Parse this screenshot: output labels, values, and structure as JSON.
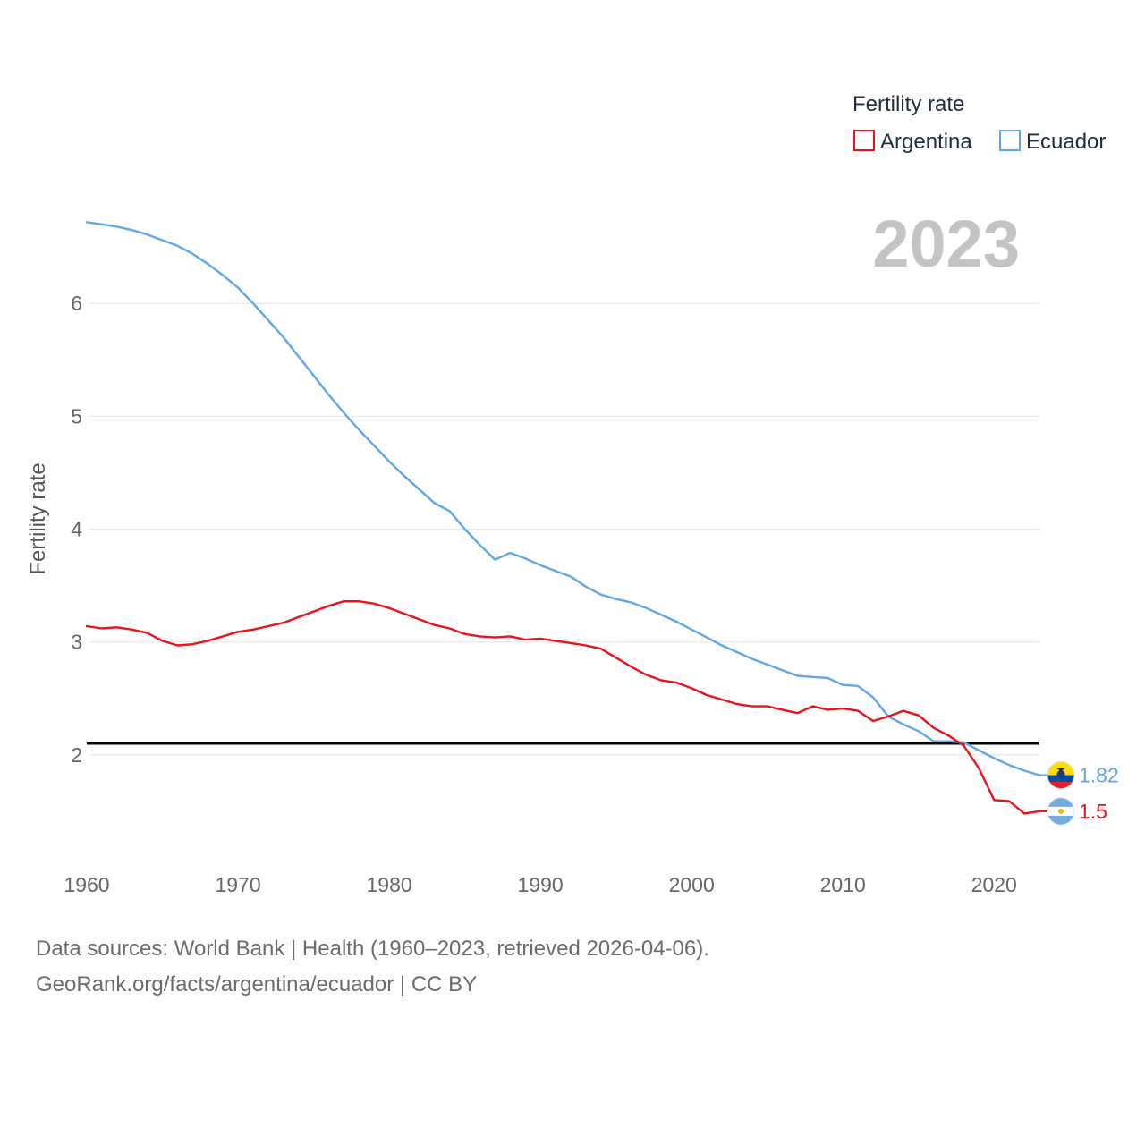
{
  "legend": {
    "title": "Fertility rate",
    "entries": [
      {
        "label": "Argentina",
        "color": "#e8131b"
      },
      {
        "label": "Ecuador",
        "color": "#5fa8e8"
      }
    ]
  },
  "year_label": "2023",
  "footer": {
    "line1": "Data sources: World Bank | Health (1960–2023, retrieved 2026-04-06).",
    "line2": "GeoRank.org/facts/argentina/ecuador | CC BY"
  },
  "chart_data": {
    "type": "line",
    "title": "Fertility rate",
    "xlabel": "",
    "ylabel": "Fertility rate",
    "xlim": [
      1960,
      2023
    ],
    "ylim": [
      1.0,
      7.0
    ],
    "x_ticks": [
      1960,
      1970,
      1980,
      1990,
      2000,
      2010,
      2020
    ],
    "y_ticks": [
      2,
      3,
      4,
      5,
      6
    ],
    "grid": true,
    "reference_line": {
      "y": 2.1,
      "color": "#000000"
    },
    "series": [
      {
        "name": "Argentina",
        "color": "#e8131b",
        "end_label": "1.5",
        "flag": "argentina-flag",
        "x": [
          1960,
          1961,
          1962,
          1963,
          1964,
          1965,
          1966,
          1967,
          1968,
          1969,
          1970,
          1971,
          1972,
          1973,
          1974,
          1975,
          1976,
          1977,
          1978,
          1979,
          1980,
          1981,
          1982,
          1983,
          1984,
          1985,
          1986,
          1987,
          1988,
          1989,
          1990,
          1991,
          1992,
          1993,
          1994,
          1995,
          1996,
          1997,
          1998,
          1999,
          2000,
          2001,
          2002,
          2003,
          2004,
          2005,
          2006,
          2007,
          2008,
          2009,
          2010,
          2011,
          2012,
          2013,
          2014,
          2015,
          2016,
          2017,
          2018,
          2019,
          2020,
          2021,
          2022,
          2023
        ],
        "values": [
          3.14,
          3.12,
          3.13,
          3.11,
          3.08,
          3.01,
          2.97,
          2.98,
          3.01,
          3.05,
          3.09,
          3.11,
          3.14,
          3.17,
          3.22,
          3.27,
          3.32,
          3.36,
          3.36,
          3.34,
          3.3,
          3.25,
          3.2,
          3.15,
          3.12,
          3.07,
          3.05,
          3.04,
          3.05,
          3.02,
          3.03,
          3.01,
          2.99,
          2.97,
          2.94,
          2.86,
          2.78,
          2.71,
          2.66,
          2.64,
          2.59,
          2.53,
          2.49,
          2.45,
          2.43,
          2.43,
          2.4,
          2.37,
          2.43,
          2.4,
          2.41,
          2.39,
          2.3,
          2.34,
          2.39,
          2.35,
          2.24,
          2.17,
          2.08,
          1.88,
          1.6,
          1.59,
          1.48,
          1.5
        ]
      },
      {
        "name": "Ecuador",
        "color": "#5fa8e8",
        "end_label": "1.82",
        "flag": "ecuador-flag",
        "x": [
          1960,
          1961,
          1962,
          1963,
          1964,
          1965,
          1966,
          1967,
          1968,
          1969,
          1970,
          1971,
          1972,
          1973,
          1974,
          1975,
          1976,
          1977,
          1978,
          1979,
          1980,
          1981,
          1982,
          1983,
          1984,
          1985,
          1986,
          1987,
          1988,
          1989,
          1990,
          1991,
          1992,
          1993,
          1994,
          1995,
          1996,
          1997,
          1998,
          1999,
          2000,
          2001,
          2002,
          2003,
          2004,
          2005,
          2006,
          2007,
          2008,
          2009,
          2010,
          2011,
          2012,
          2013,
          2014,
          2015,
          2016,
          2017,
          2018,
          2019,
          2020,
          2021,
          2022,
          2023
        ],
        "values": [
          6.72,
          6.7,
          6.68,
          6.65,
          6.61,
          6.56,
          6.51,
          6.44,
          6.35,
          6.25,
          6.14,
          6.0,
          5.85,
          5.7,
          5.53,
          5.36,
          5.19,
          5.03,
          4.88,
          4.74,
          4.6,
          4.47,
          4.35,
          4.23,
          4.16,
          4.0,
          3.86,
          3.73,
          3.79,
          3.74,
          3.68,
          3.63,
          3.58,
          3.49,
          3.42,
          3.38,
          3.35,
          3.3,
          3.24,
          3.18,
          3.11,
          3.04,
          2.97,
          2.91,
          2.85,
          2.8,
          2.75,
          2.7,
          2.69,
          2.68,
          2.62,
          2.61,
          2.51,
          2.34,
          2.27,
          2.21,
          2.12,
          2.12,
          2.11,
          2.04,
          1.97,
          1.91,
          1.86,
          1.82
        ]
      }
    ]
  }
}
